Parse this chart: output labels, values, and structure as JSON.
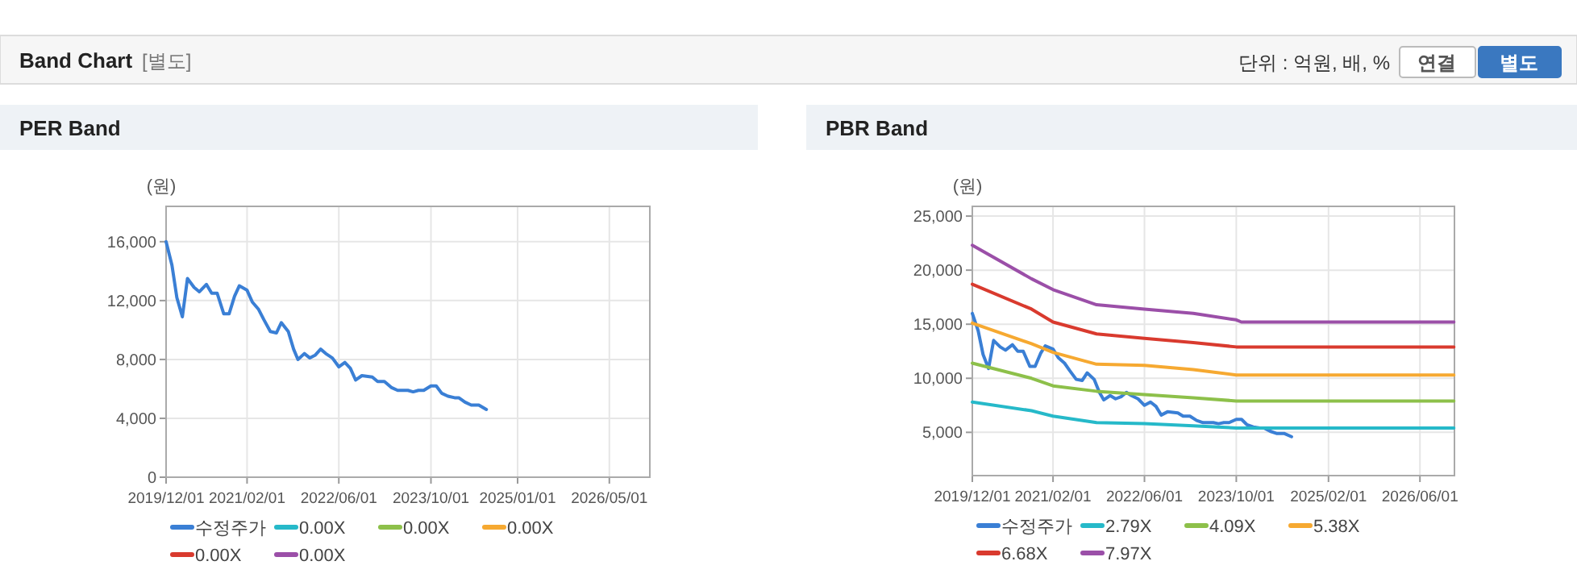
{
  "chart_data": [
    {
      "type": "line",
      "title": "PER Band",
      "ylabel": "(원)",
      "annotations": [
        "Band Chart",
        "[별도]",
        "단위 : 억원, 배, %",
        "연결",
        "별도"
      ],
      "xlim": [
        "2019-12-01",
        "2026-12-01"
      ],
      "xticks": [
        {
          "value": "2019-12-01",
          "label": "2019/12/01"
        },
        {
          "value": "2021-02-01",
          "label": "2021/02/01"
        },
        {
          "value": "2022-06-01",
          "label": "2022/06/01"
        },
        {
          "value": "2023-10-01",
          "label": "2023/10/01"
        },
        {
          "value": "2025-01-01",
          "label": "2025/01/01"
        },
        {
          "value": "2026-05-01",
          "label": "2026/05/01"
        }
      ],
      "ylim": [
        0,
        18400
      ],
      "yticks": [
        0,
        {
          "value": 4000,
          "label": "4,000"
        },
        {
          "value": 8000,
          "label": "8,000"
        },
        {
          "value": 12000,
          "label": "12,000"
        },
        {
          "value": 16000,
          "label": "16,000"
        }
      ],
      "grid": true,
      "legend": "bottom",
      "marker": "none",
      "line_style": "solid",
      "series": [
        {
          "name": "수정주가",
          "color": "#3a7fd5",
          "x": [
            "2019-12-01",
            "2020-01-01",
            "2020-01-27",
            "2020-02-25",
            "2020-03-23",
            "2020-04-27",
            "2020-05-25",
            "2020-07-01",
            "2020-07-29",
            "2020-08-27",
            "2020-10-01",
            "2020-10-29",
            "2020-11-27",
            "2020-12-22",
            "2021-02-01",
            "2021-03-01",
            "2021-04-03",
            "2021-05-01",
            "2021-06-04",
            "2021-07-06",
            "2021-08-01",
            "2021-09-07",
            "2021-10-05",
            "2021-10-28",
            "2021-12-01",
            "2021-12-30",
            "2022-01-28",
            "2022-02-25",
            "2022-03-24",
            "2022-04-28",
            "2022-06-01",
            "2022-07-03",
            "2022-08-01",
            "2022-08-29",
            "2022-10-01",
            "2022-11-25",
            "2022-12-23",
            "2023-01-28",
            "2023-03-05",
            "2023-04-08",
            "2023-06-01",
            "2023-06-29",
            "2023-07-27",
            "2023-08-24",
            "2023-10-01",
            "2023-10-29",
            "2023-11-27",
            "2023-12-30",
            "2024-02-03",
            "2024-02-25",
            "2024-03-29",
            "2024-05-01",
            "2024-06-10",
            "2024-07-20"
          ],
          "values": [
            16000,
            14400,
            12200,
            10900,
            13500,
            12900,
            12600,
            13100,
            12500,
            12500,
            11100,
            11100,
            12300,
            13000,
            12700,
            11900,
            11400,
            10700,
            9900,
            9800,
            10500,
            9900,
            8700,
            8000,
            8400,
            8100,
            8300,
            8700,
            8400,
            8100,
            7500,
            7800,
            7400,
            6600,
            6900,
            6800,
            6500,
            6500,
            6100,
            5900,
            5900,
            5800,
            5900,
            5900,
            6200,
            6200,
            5700,
            5500,
            5400,
            5400,
            5100,
            4900,
            4900,
            4600
          ]
        },
        {
          "name": "0.00X",
          "color": "#26b9c9"
        },
        {
          "name": "0.00X",
          "color": "#8dc04a"
        },
        {
          "name": "0.00X",
          "color": "#f6a931"
        },
        {
          "name": "0.00X",
          "color": "#d93a2e"
        },
        {
          "name": "0.00X",
          "color": "#9b4fa8"
        }
      ]
    },
    {
      "type": "line",
      "title": "PBR Band",
      "ylabel": "(원)",
      "xlim": [
        "2019-12-01",
        "2026-12-01"
      ],
      "xticks": [
        {
          "value": "2019-12-01",
          "label": "2019/12/01"
        },
        {
          "value": "2021-02-01",
          "label": "2021/02/01"
        },
        {
          "value": "2022-06-01",
          "label": "2022/06/01"
        },
        {
          "value": "2023-10-01",
          "label": "2023/10/01"
        },
        {
          "value": "2025-02-01",
          "label": "2025/02/01"
        },
        {
          "value": "2026-06-01",
          "label": "2026/06/01"
        }
      ],
      "ylim": [
        1000,
        25900
      ],
      "yticks": [
        {
          "value": 5000,
          "label": "5,000"
        },
        {
          "value": 10000,
          "label": "10,000"
        },
        {
          "value": 15000,
          "label": "15,000"
        },
        {
          "value": 20000,
          "label": "20,000"
        },
        {
          "value": 25000,
          "label": "25,000"
        }
      ],
      "grid": true,
      "legend": "bottom",
      "marker": "none",
      "line_style": "solid",
      "series": [
        {
          "name": "수정주가",
          "color": "#3a7fd5",
          "x": [
            "2019-12-01",
            "2020-01-01",
            "2020-01-27",
            "2020-02-25",
            "2020-03-23",
            "2020-04-27",
            "2020-05-25",
            "2020-07-01",
            "2020-07-29",
            "2020-08-27",
            "2020-10-01",
            "2020-10-29",
            "2020-11-27",
            "2020-12-22",
            "2021-02-01",
            "2021-03-01",
            "2021-04-03",
            "2021-05-01",
            "2021-06-04",
            "2021-07-06",
            "2021-08-01",
            "2021-09-07",
            "2021-10-05",
            "2021-10-28",
            "2021-12-01",
            "2021-12-30",
            "2022-01-28",
            "2022-02-25",
            "2022-03-24",
            "2022-04-28",
            "2022-06-01",
            "2022-07-03",
            "2022-08-01",
            "2022-08-29",
            "2022-10-01",
            "2022-11-25",
            "2022-12-23",
            "2023-01-28",
            "2023-03-05",
            "2023-04-08",
            "2023-06-01",
            "2023-06-29",
            "2023-07-27",
            "2023-08-24",
            "2023-10-01",
            "2023-10-29",
            "2023-11-27",
            "2023-12-30",
            "2024-02-03",
            "2024-02-25",
            "2024-03-29",
            "2024-05-01",
            "2024-06-10",
            "2024-07-20"
          ],
          "values": [
            16000,
            14400,
            12200,
            10900,
            13500,
            12900,
            12600,
            13100,
            12500,
            12500,
            11100,
            11100,
            12300,
            13000,
            12700,
            11900,
            11400,
            10700,
            9900,
            9800,
            10500,
            9900,
            8700,
            8000,
            8400,
            8100,
            8300,
            8700,
            8400,
            8100,
            7500,
            7800,
            7400,
            6600,
            6900,
            6800,
            6500,
            6500,
            6100,
            5900,
            5900,
            5800,
            5900,
            5900,
            6200,
            6200,
            5700,
            5500,
            5400,
            5400,
            5100,
            4900,
            4900,
            4600
          ]
        },
        {
          "name": "2.79X",
          "color": "#26b9c9",
          "x": [
            "2019-12-01",
            "2020-10-10",
            "2021-02-01",
            "2021-09-20",
            "2022-06-01",
            "2023-02-15",
            "2023-10-01",
            "2023-10-28",
            "2026-11-28"
          ],
          "values": [
            7800,
            7000,
            6500,
            5900,
            5800,
            5600,
            5400,
            5400,
            5400
          ]
        },
        {
          "name": "4.09X",
          "color": "#8dc04a",
          "x": [
            "2019-12-01",
            "2020-10-10",
            "2021-02-01",
            "2021-09-20",
            "2022-06-01",
            "2023-02-15",
            "2023-10-01",
            "2023-10-28",
            "2026-11-28"
          ],
          "values": [
            11400,
            10000,
            9300,
            8800,
            8500,
            8200,
            7900,
            7900,
            7900
          ]
        },
        {
          "name": "5.38X",
          "color": "#f6a931",
          "x": [
            "2019-12-01",
            "2020-10-10",
            "2021-02-01",
            "2021-09-20",
            "2022-06-01",
            "2023-02-15",
            "2023-10-01",
            "2023-10-28",
            "2026-11-28"
          ],
          "values": [
            15100,
            13200,
            12400,
            11300,
            11200,
            10800,
            10300,
            10300,
            10300
          ]
        },
        {
          "name": "6.68X",
          "color": "#d93a2e",
          "x": [
            "2019-12-01",
            "2020-10-10",
            "2021-02-01",
            "2021-09-20",
            "2022-06-01",
            "2023-02-15",
            "2023-10-01",
            "2023-10-28",
            "2026-11-28"
          ],
          "values": [
            18700,
            16400,
            15200,
            14100,
            13700,
            13300,
            12900,
            12900,
            12900
          ]
        },
        {
          "name": "7.97X",
          "color": "#9b4fa8",
          "x": [
            "2019-12-01",
            "2020-10-10",
            "2021-02-01",
            "2021-09-20",
            "2022-06-01",
            "2023-02-15",
            "2023-10-01",
            "2023-10-28",
            "2026-11-28"
          ],
          "values": [
            22300,
            19200,
            18200,
            16800,
            16400,
            16000,
            15400,
            15200,
            15200
          ]
        }
      ]
    }
  ]
}
